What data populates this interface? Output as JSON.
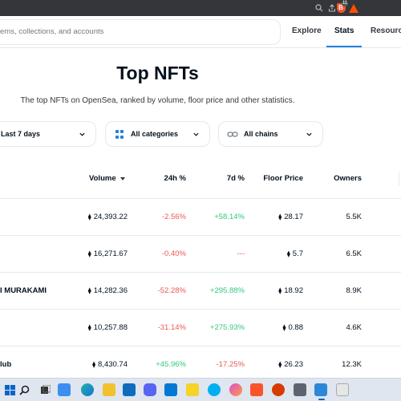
{
  "browser": {
    "icons": [
      "zoom-icon",
      "share-icon",
      "brave-shields-icon",
      "brave-rewards-icon"
    ],
    "shield_count": "11"
  },
  "header": {
    "search_placeholder": "ems, collections, and accounts",
    "nav": [
      "Explore",
      "Stats",
      "Resource"
    ],
    "active_nav": "Stats"
  },
  "page": {
    "title": "Top NFTs",
    "subtitle": "The top NFTs on OpenSea, ranked by volume, floor price and other statistics."
  },
  "filters": {
    "period": "Last 7 days",
    "category": "All categories",
    "chain": "All chains"
  },
  "table": {
    "columns": {
      "volume": "Volume",
      "change_24h": "24h %",
      "change_7d": "7d %",
      "floor": "Floor Price",
      "owners": "Owners"
    },
    "eth_symbol": "⧫",
    "rows": [
      {
        "name": "",
        "volume": "24,393.22",
        "change_24h": "-2.56%",
        "change_7d": "+58.14%",
        "floor": "28.17",
        "owners": "5.5K"
      },
      {
        "name": "",
        "volume": "16,271.67",
        "change_24h": "-0.40%",
        "change_7d": "---",
        "floor": "5.7",
        "owners": "6.5K"
      },
      {
        "name": "I MURAKAMI",
        "volume": "14,282.36",
        "change_24h": "-52.28%",
        "change_7d": "+295.88%",
        "floor": "18.92",
        "owners": "8.9K"
      },
      {
        "name": "",
        "volume": "10,257.88",
        "change_24h": "-31.14%",
        "change_7d": "+275.93%",
        "floor": "0.88",
        "owners": "4.6K"
      },
      {
        "name": "lub",
        "volume": "8,430.74",
        "change_24h": "+45.96%",
        "change_7d": "-17.25%",
        "floor": "26.23",
        "owners": "12.3K"
      }
    ]
  },
  "colors": {
    "accent": "#2081e2",
    "negative": "#eb5757",
    "positive": "#34c77b",
    "text": "#04111d"
  },
  "taskbar": {
    "icons": [
      "windows-start-icon",
      "search-icon",
      "task-view-icon",
      "widgets-icon",
      "edge-icon",
      "file-explorer-icon",
      "mail-icon",
      "discord-icon",
      "vscode-icon",
      "sticky-notes-icon",
      "skype-icon",
      "paint-icon",
      "brave-icon",
      "office-icon",
      "camera-icon",
      "photos-icon",
      "snipping-tool-icon"
    ]
  }
}
